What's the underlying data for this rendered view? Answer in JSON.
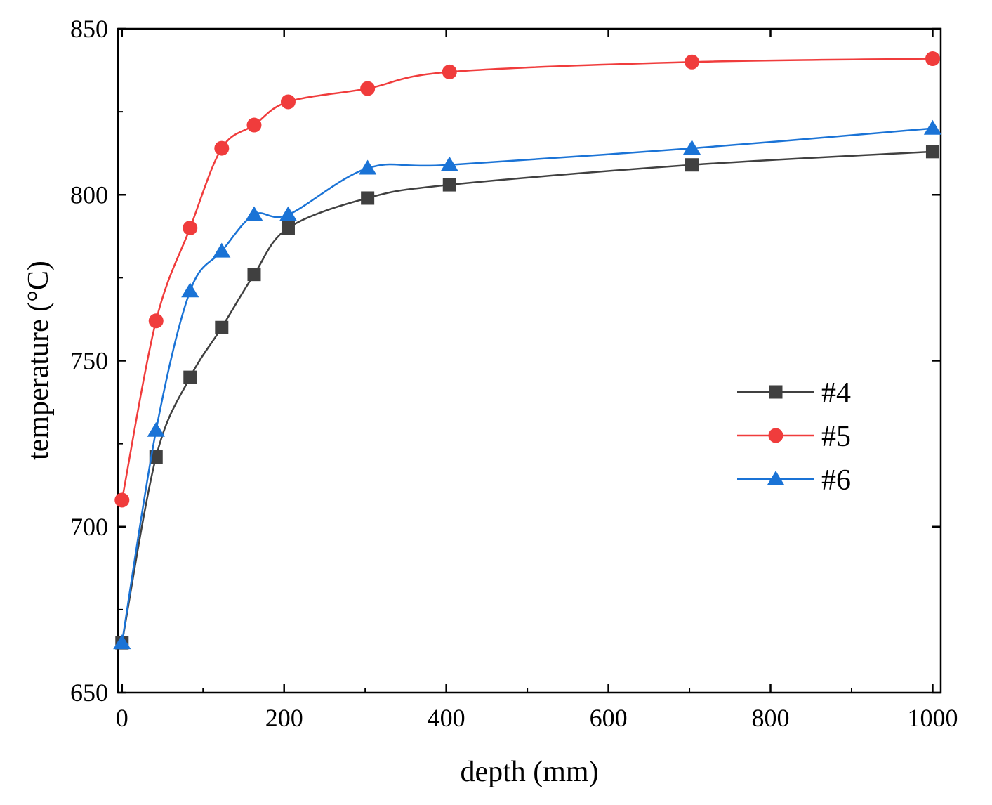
{
  "chart_data": {
    "type": "line",
    "title": "",
    "xlabel": "depth (mm)",
    "ylabel": "temperature (°C)",
    "xlim": [
      -5,
      1010
    ],
    "ylim": [
      650,
      850
    ],
    "x_ticks": [
      0,
      200,
      400,
      600,
      800,
      1000
    ],
    "x_tick_labels": [
      "0",
      "200",
      "400",
      "600",
      "800",
      "1000"
    ],
    "y_ticks": [
      650,
      700,
      750,
      800,
      850
    ],
    "y_tick_labels": [
      "650",
      "700",
      "750",
      "800",
      "850"
    ],
    "grid": false,
    "legend_position": "right-middle",
    "series": [
      {
        "name": "#4",
        "marker": "square",
        "color": "#404040",
        "x": [
          0,
          42,
          84,
          123,
          163,
          205,
          303,
          404,
          703,
          1000
        ],
        "y": [
          665,
          721,
          745,
          760,
          776,
          790,
          799,
          803,
          809,
          813
        ]
      },
      {
        "name": "#5",
        "marker": "circle",
        "color": "#f03c3c",
        "x": [
          0,
          42,
          84,
          123,
          163,
          205,
          303,
          404,
          703,
          1000
        ],
        "y": [
          708,
          762,
          790,
          814,
          821,
          828,
          832,
          837,
          840,
          841
        ]
      },
      {
        "name": "#6",
        "marker": "triangle",
        "color": "#1a73d6",
        "x": [
          0,
          42,
          84,
          123,
          163,
          205,
          303,
          404,
          703,
          1000
        ],
        "y": [
          665,
          729,
          771,
          783,
          794,
          794,
          808,
          809,
          814,
          820
        ]
      }
    ]
  }
}
